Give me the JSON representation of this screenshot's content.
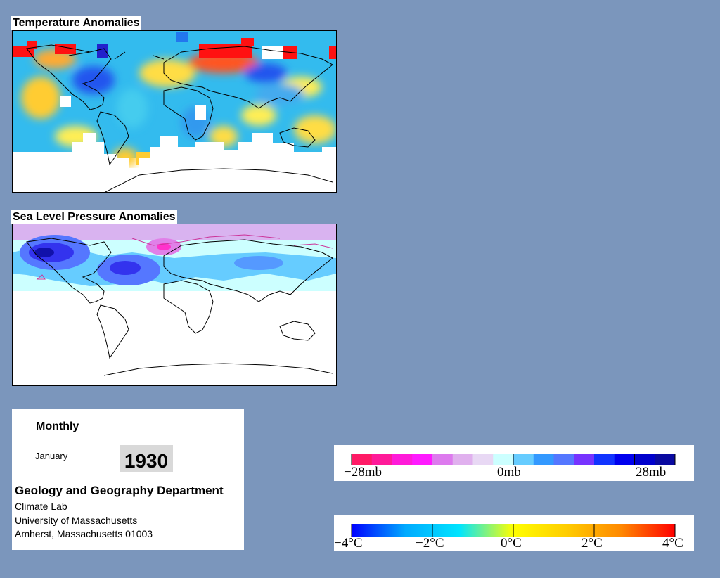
{
  "temperature": {
    "title": "Temperature Anomalies"
  },
  "pressure": {
    "title": "Sea Level Pressure Anomalies"
  },
  "info": {
    "frequency": "Monthly",
    "month": "January",
    "year": "1930",
    "department": "Geology and Geography Department",
    "lab": "Climate Lab",
    "university": "University of Massachusetts",
    "address": "Amherst, Massachusetts 01003"
  },
  "pressure_legend": {
    "labels": [
      "−28mb",
      "0mb",
      "28mb"
    ],
    "colors": [
      "#ff1a66",
      "#ff1a99",
      "#ff1ad9",
      "#ff1aff",
      "#dd7aee",
      "#e0b0ee",
      "#e8d8f4",
      "#ccffff",
      "#66ccff",
      "#3399ff",
      "#5577ff",
      "#7733ff",
      "#1133ff",
      "#0000ee",
      "#0000cc",
      "#0a0aa0"
    ]
  },
  "temperature_legend": {
    "labels": [
      "−4°C",
      "−2°C",
      "0°C",
      "2°C",
      "4°C"
    ],
    "gradient": [
      "#0000ff",
      "#00aaff",
      "#00e5ff",
      "#ffff00",
      "#ffcc00",
      "#ff8800",
      "#ff0000"
    ]
  }
}
